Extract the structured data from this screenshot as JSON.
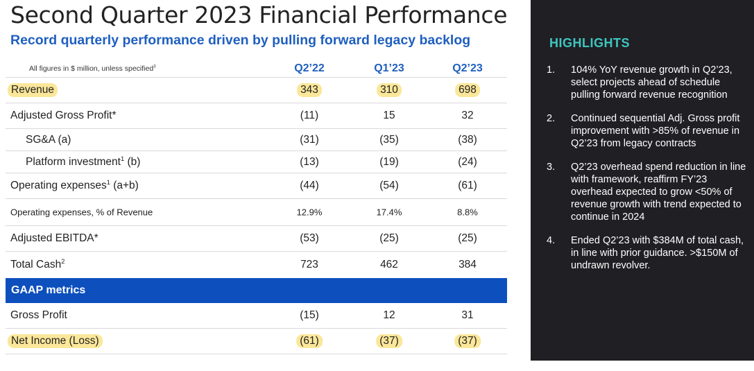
{
  "title": "Second Quarter 2023 Financial Performance",
  "subtitle": "Record quarterly performance driven by pulling forward legacy backlog",
  "table": {
    "note": "All figures in $ million, unless specified",
    "note_sup": "3",
    "columns": [
      "Q2’22",
      "Q1’23",
      "Q2’23"
    ],
    "rows": [
      {
        "label": "Revenue",
        "values": [
          "343",
          "310",
          "698"
        ]
      },
      {
        "label": "Adjusted Gross Profit*",
        "values": [
          "(11)",
          "15",
          "32"
        ]
      },
      {
        "label": "SG&A (a)",
        "values": [
          "(31)",
          "(35)",
          "(38)"
        ]
      },
      {
        "label": "Platform investment",
        "sup": "1",
        "suffix": " (b)",
        "values": [
          "(13)",
          "(19)",
          "(24)"
        ]
      },
      {
        "label": "Operating expenses",
        "sup": "1",
        "suffix": " (a+b)",
        "values": [
          "(44)",
          "(54)",
          "(61)"
        ]
      },
      {
        "label": "Operating expenses, % of Revenue",
        "values": [
          "12.9%",
          "17.4%",
          "8.8%"
        ]
      },
      {
        "label": "Adjusted EBITDA*",
        "values": [
          "(53)",
          "(25)",
          "(25)"
        ]
      },
      {
        "label": "Total Cash",
        "sup": "2",
        "values": [
          "723",
          "462",
          "384"
        ]
      }
    ],
    "gaap_header": "GAAP metrics",
    "gaap_rows": [
      {
        "label": "Gross Profit",
        "values": [
          "(15)",
          "12",
          "31"
        ]
      },
      {
        "label": "Net Income (Loss)",
        "values": [
          "(61)",
          "(37)",
          "(37)"
        ]
      }
    ]
  },
  "highlights": {
    "title": "HIGHLIGHTS",
    "items": [
      {
        "num": "1.",
        "text": "104% YoY revenue growth in Q2’23, select projects ahead of schedule pulling forward revenue recognition"
      },
      {
        "num": "2.",
        "text": "Continued sequential Adj. Gross profit improvement with >85% of revenue in Q2’23 from legacy contracts"
      },
      {
        "num": "3.",
        "text": "Q2’23 overhead spend reduction in line with framework, reaffirm FY’23 overhead expected to grow <50% of revenue growth with trend expected to continue in 2024"
      },
      {
        "num": "4.",
        "text": "Ended Q2’23 with $384M of total cash, in line with prior guidance. >$150M of undrawn revolver."
      }
    ]
  },
  "colors": {
    "accent_blue": "#1f5fbf",
    "gaap_bar": "#0d4fbd",
    "highlight": "#fbe79a",
    "panel_bg": "#1f1f24",
    "panel_title": "#3fc6bf"
  }
}
